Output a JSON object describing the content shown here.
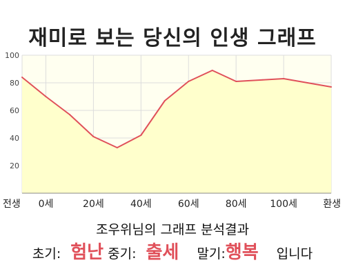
{
  "title": "재미로 보는 당신의 인생 그래프",
  "subtitle": "조우위님의 그래프 분석결과",
  "result": {
    "early_label": "초기:",
    "early_value": "험난",
    "middle_label": "중기:",
    "middle_value": "출세",
    "late_label": "말기:",
    "late_value": "행복",
    "suffix": "입니다"
  },
  "colors": {
    "line": "#e0505a",
    "fill": "#ffffcc",
    "grid": "#dcdcdc",
    "highlight": "#e0505a"
  },
  "chart_data": {
    "type": "area",
    "title": "",
    "xlabel": "",
    "ylabel": "",
    "x": [
      -10,
      0,
      10,
      20,
      30,
      40,
      50,
      60,
      70,
      80,
      90,
      100,
      110,
      120
    ],
    "values": [
      84,
      70,
      57,
      41,
      33,
      42,
      67,
      81,
      89,
      81,
      82,
      83,
      80,
      77
    ],
    "xlim": [
      -10,
      120
    ],
    "ylim": [
      0,
      100
    ],
    "x_tick_positions": [
      -10,
      0,
      20,
      40,
      60,
      80,
      100,
      120
    ],
    "x_tick_labels": [
      "전생",
      "0세",
      "20세",
      "40세",
      "60세",
      "80세",
      "100세",
      "환생"
    ],
    "y_ticks": [
      20,
      40,
      60,
      80,
      100
    ],
    "grid": true,
    "legend": "none"
  }
}
